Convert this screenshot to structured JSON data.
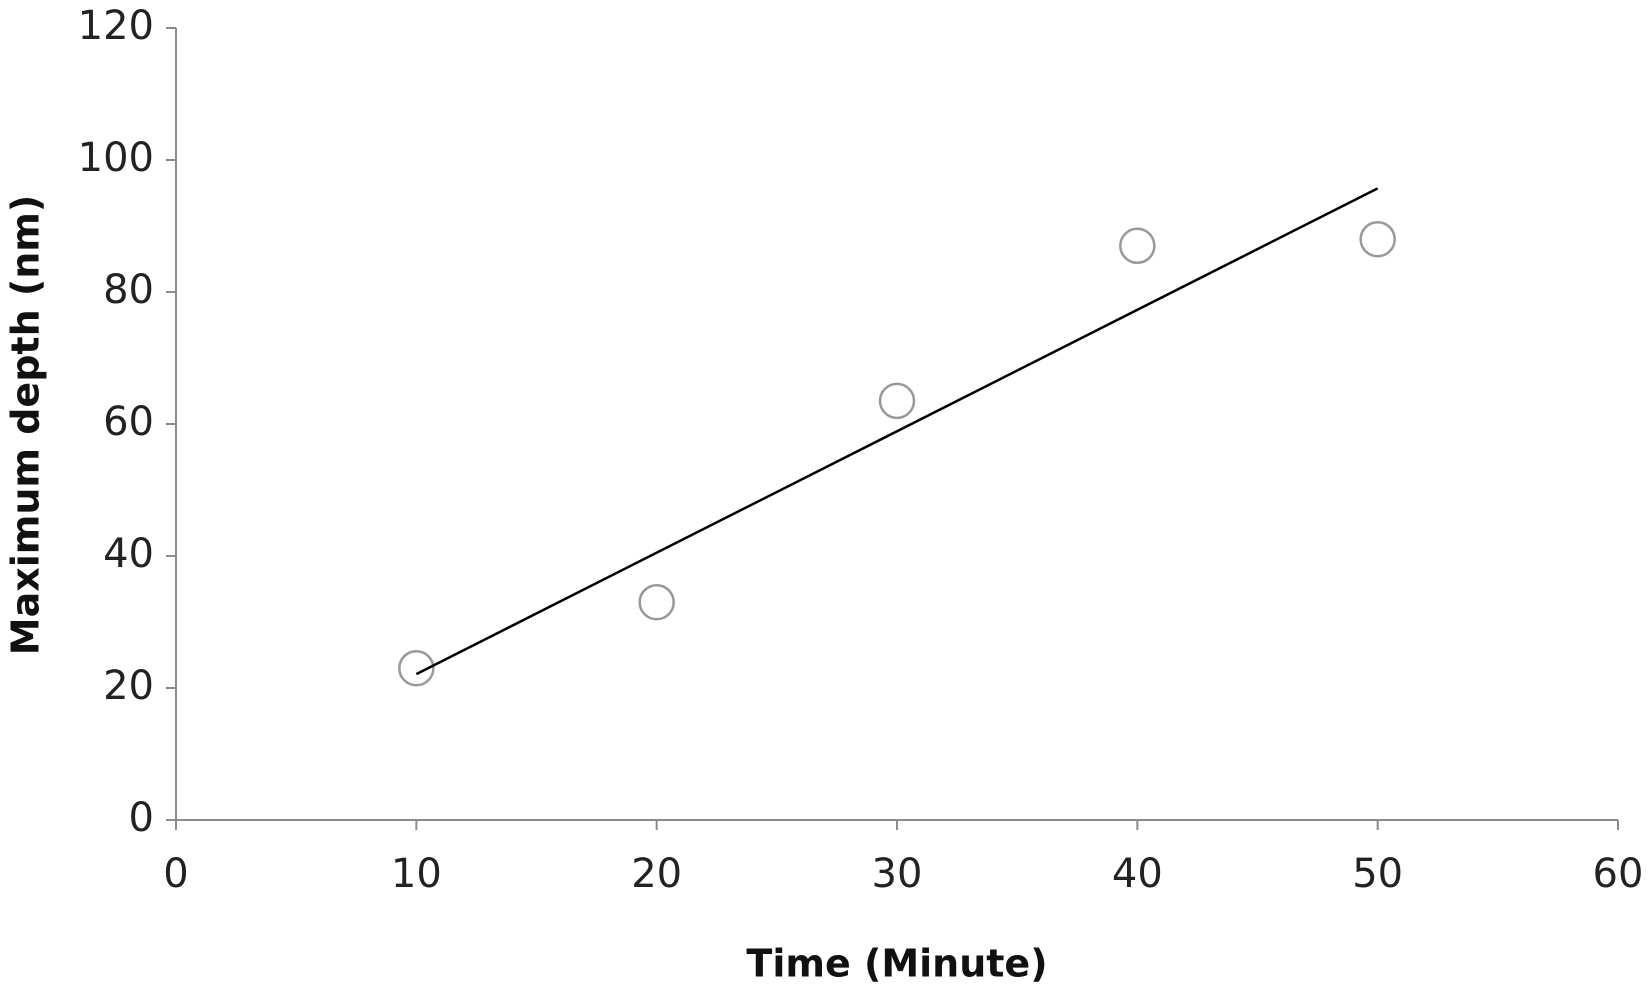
{
  "chart_data": {
    "type": "scatter",
    "x_label": "Time (Minute)",
    "y_label": "Maximum depth (nm)",
    "xlim": [
      0,
      60
    ],
    "xticks": [
      0,
      10,
      20,
      30,
      40,
      50,
      60
    ],
    "ylim": [
      0,
      120
    ],
    "yticks": [
      0,
      20,
      40,
      60,
      80,
      100,
      120
    ],
    "grid": false,
    "series": [
      {
        "type": "scatter",
        "color": "#999999",
        "x": [
          10,
          20,
          30,
          40,
          50
        ],
        "values": [
          23,
          33,
          63.5,
          87,
          88
        ]
      },
      {
        "type": "line",
        "color": "#000000",
        "x": [
          10,
          50
        ],
        "values": [
          22.1,
          95.7
        ]
      }
    ]
  }
}
